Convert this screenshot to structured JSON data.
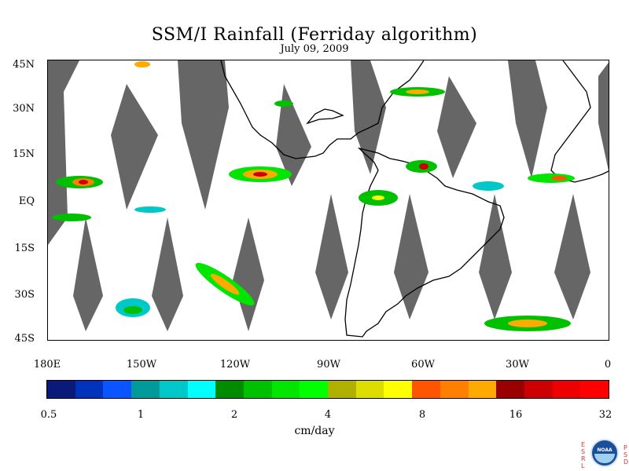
{
  "title": "SSM/I Rainfall (Ferriday algorithm)",
  "date": "July 09, 2009",
  "y_axis_labels": [
    "45N",
    "30N",
    "15N",
    "EQ",
    "15S",
    "30S",
    "45S"
  ],
  "x_axis_labels": [
    "180E",
    "150W",
    "120W",
    "90W",
    "60W",
    "30W",
    "0"
  ],
  "colorbar": {
    "colors": [
      "#0a1a7a",
      "#0033bb",
      "#0a55ff",
      "#009a9a",
      "#00c8c8",
      "#00ffff",
      "#008c00",
      "#00c000",
      "#00e600",
      "#00ff00",
      "#b0b000",
      "#dddd00",
      "#ffff00",
      "#ff5500",
      "#ff8000",
      "#ffaa00",
      "#990000",
      "#cc0000",
      "#ee0000",
      "#ff0000"
    ],
    "labels": [
      "0.5",
      "1",
      "2",
      "4",
      "8",
      "16",
      "32"
    ],
    "units": "cm/day"
  },
  "logo": {
    "left_letters": "E S R L",
    "right_letters": "P S D",
    "name": "NOAA"
  },
  "colors": {
    "swath_gap": "#666666",
    "land_outline": "#000000",
    "background": "#ffffff"
  }
}
